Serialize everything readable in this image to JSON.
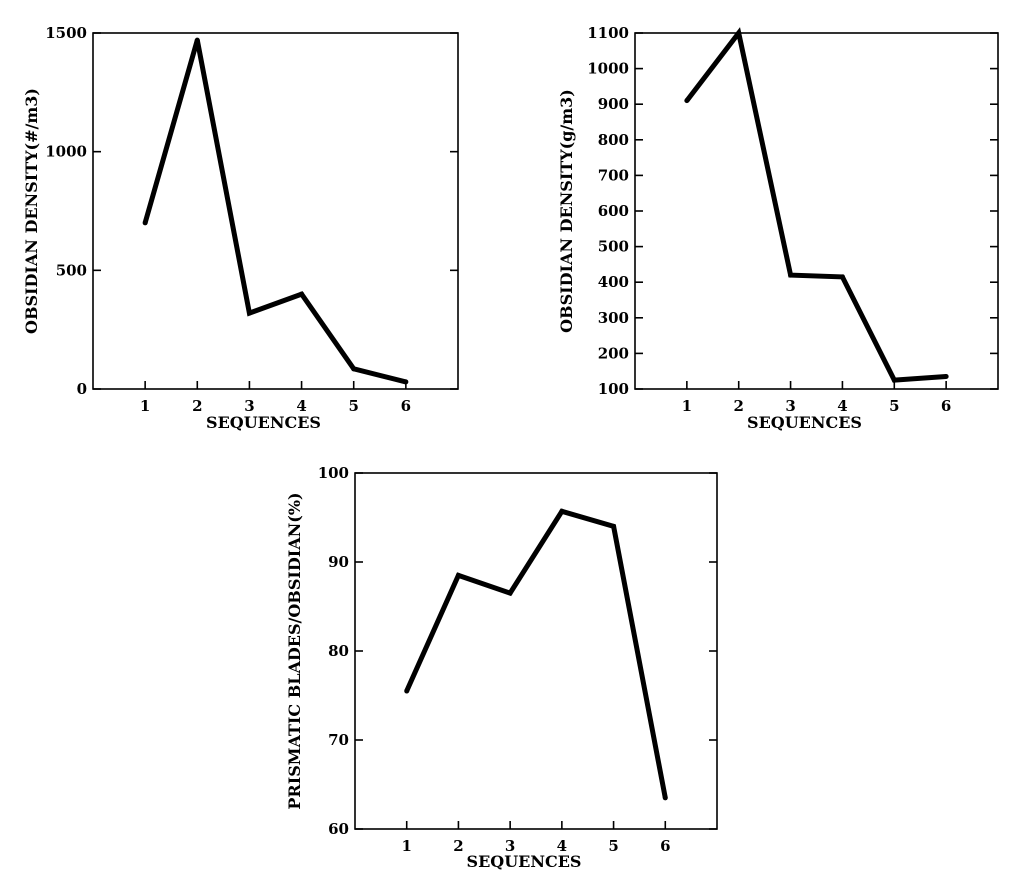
{
  "chart_data": [
    {
      "type": "line",
      "x": [
        1,
        2,
        3,
        4,
        5,
        6
      ],
      "values": [
        700,
        1470,
        320,
        400,
        85,
        30
      ],
      "xlabel": "SEQUENCES",
      "ylabel": "OBSIDIAN  DENSITY(#/m3)",
      "xlim": [
        0,
        7
      ],
      "ylim": [
        0,
        1500
      ],
      "xticks": [
        "1",
        "2",
        "3",
        "4",
        "5",
        "6"
      ],
      "yticks": [
        "0",
        "500",
        "1000",
        "1500"
      ],
      "grid": false
    },
    {
      "type": "line",
      "x": [
        1,
        2,
        3,
        4,
        5,
        6
      ],
      "values": [
        910,
        1100,
        420,
        415,
        125,
        135
      ],
      "xlabel": "SEQUENCES",
      "ylabel": "OBSIDIAN  DENSITY(g/m3)",
      "xlim": [
        0,
        7
      ],
      "ylim": [
        100,
        1100
      ],
      "xticks": [
        "1",
        "2",
        "3",
        "4",
        "5",
        "6"
      ],
      "yticks": [
        "100",
        "200",
        "300",
        "400",
        "500",
        "600",
        "700",
        "800",
        "900",
        "1000",
        "1100"
      ],
      "grid": false
    },
    {
      "type": "line",
      "x": [
        1,
        2,
        3,
        4,
        5,
        6
      ],
      "values": [
        75.5,
        88.5,
        86.5,
        95.7,
        94,
        63.5
      ],
      "xlabel": "SEQUENCES",
      "ylabel": "PRISMATIC BLADES/OBSIDIAN(%)",
      "xlim": [
        0,
        7
      ],
      "ylim": [
        60,
        100
      ],
      "xticks": [
        "1",
        "2",
        "3",
        "4",
        "5",
        "6"
      ],
      "yticks": [
        "60",
        "70",
        "80",
        "90",
        "100"
      ],
      "grid": false
    }
  ]
}
